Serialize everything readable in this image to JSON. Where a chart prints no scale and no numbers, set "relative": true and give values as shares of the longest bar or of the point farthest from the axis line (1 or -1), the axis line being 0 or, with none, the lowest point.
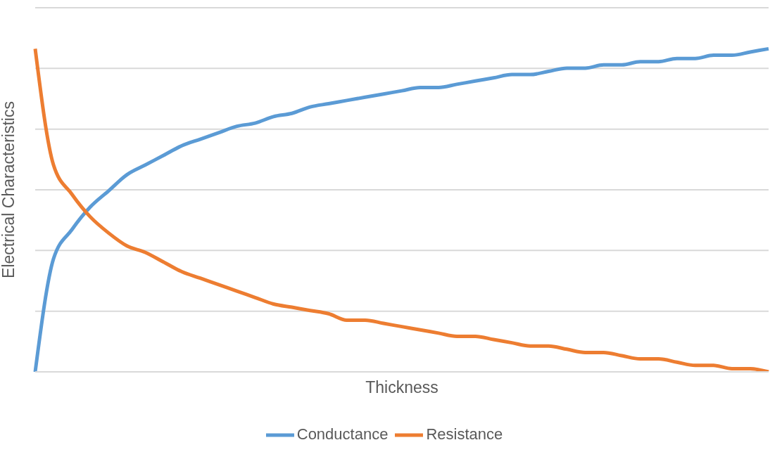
{
  "chart_data": {
    "type": "line",
    "relative": true,
    "xlabel": "Thickness",
    "ylabel": "Electrical Characteristics",
    "categories": [
      null,
      null,
      null,
      null,
      null,
      null,
      null,
      null,
      null,
      null,
      null,
      null,
      null,
      null,
      null,
      null,
      null,
      null,
      null,
      null,
      null,
      null,
      null,
      null,
      null,
      null,
      null,
      null,
      null,
      null,
      null,
      null,
      null,
      null,
      null,
      null,
      null,
      null,
      null,
      null,
      null
    ],
    "series": [
      {
        "name": "Conductance",
        "color": "#5b9bd5",
        "values": [
          0,
          0.35,
          0.44,
          0.51,
          0.56,
          0.61,
          0.64,
          0.67,
          0.7,
          0.72,
          0.74,
          0.76,
          0.77,
          0.79,
          0.8,
          0.82,
          0.83,
          0.84,
          0.85,
          0.86,
          0.87,
          0.88,
          0.88,
          0.89,
          0.9,
          0.91,
          0.92,
          0.92,
          0.93,
          0.94,
          0.94,
          0.95,
          0.95,
          0.96,
          0.96,
          0.97,
          0.97,
          0.98,
          0.98,
          0.99,
          1
        ]
      },
      {
        "name": "Resistance",
        "color": "#ed7d31",
        "values": [
          1,
          0.64,
          0.55,
          0.48,
          0.43,
          0.39,
          0.37,
          0.34,
          0.31,
          0.29,
          0.27,
          0.25,
          0.23,
          0.21,
          0.2,
          0.19,
          0.18,
          0.16,
          0.16,
          0.15,
          0.14,
          0.13,
          0.12,
          0.11,
          0.11,
          0.1,
          0.09,
          0.08,
          0.08,
          0.07,
          0.06,
          0.06,
          0.05,
          0.04,
          0.04,
          0.03,
          0.02,
          0.02,
          0.01,
          0.01,
          0
        ]
      }
    ],
    "grid": "y",
    "legend": "bottom",
    "marker": "none",
    "line_style": "solid"
  }
}
